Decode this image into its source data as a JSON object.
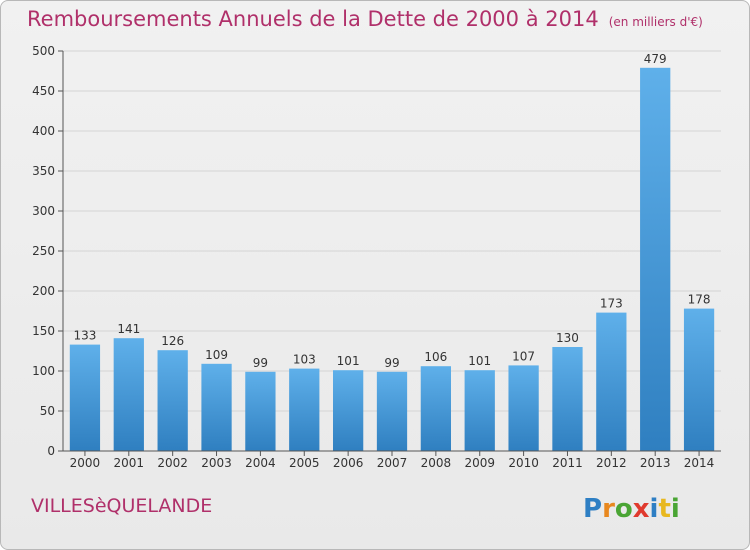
{
  "title": "Remboursements Annuels de la Dette de 2000 à 2014",
  "subtitle": "(en milliers d'€)",
  "place": "VILLESèQUELANDE",
  "logo": "Proxiti",
  "colors": {
    "title": "#b0306a",
    "bar_top": "#5fb0ea",
    "bar_bottom": "#2f7fc0"
  },
  "chart_data": {
    "type": "bar",
    "categories": [
      "2000",
      "2001",
      "2002",
      "2003",
      "2004",
      "2005",
      "2006",
      "2007",
      "2008",
      "2009",
      "2010",
      "2011",
      "2012",
      "2013",
      "2014"
    ],
    "values": [
      133,
      141,
      126,
      109,
      99,
      103,
      101,
      99,
      106,
      101,
      107,
      130,
      173,
      479,
      178
    ],
    "ylim": [
      0,
      500
    ],
    "yticks": [
      0,
      50,
      100,
      150,
      200,
      250,
      300,
      350,
      400,
      450,
      500
    ],
    "grid": true,
    "legend": "none",
    "xlabel": "",
    "ylabel": ""
  }
}
